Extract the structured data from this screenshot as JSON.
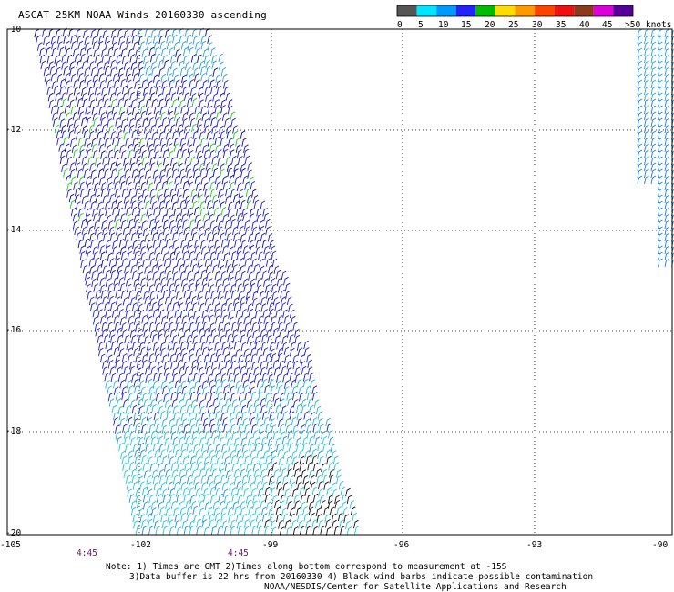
{
  "title": "ASCAT 25KM NOAA Winds 20160330 ascending",
  "legend": {
    "labels": [
      "0",
      "5",
      "10",
      "15",
      "20",
      "25",
      "30",
      "35",
      "40",
      "45",
      ">50 knots"
    ],
    "colors": [
      "#555555",
      "#00e5ff",
      "#0099ff",
      "#2222ff",
      "#00bb00",
      "#ffdd00",
      "#ff9900",
      "#ff4400",
      "#ee1111",
      "#8b3a1a",
      "#dd00dd",
      "#550099"
    ]
  },
  "map": {
    "lat_labels": [
      "-10",
      "-12",
      "-14",
      "-16",
      "-18",
      "-20"
    ],
    "lon_labels": [
      "-105",
      "-102",
      "-99",
      "-96",
      "-93",
      "-90"
    ],
    "time_labels": [
      "4:45",
      "4:45"
    ]
  },
  "notes": {
    "line1": "Note: 1) Times are GMT 2)Times along bottom correspond to measurement at -15S",
    "line2": "3)Data buffer is 22 hrs from 20160330 4) Black wind barbs indicate possible contamination",
    "line3": "NOAA/NESDIS/Center for Satellite Applications and Research"
  }
}
